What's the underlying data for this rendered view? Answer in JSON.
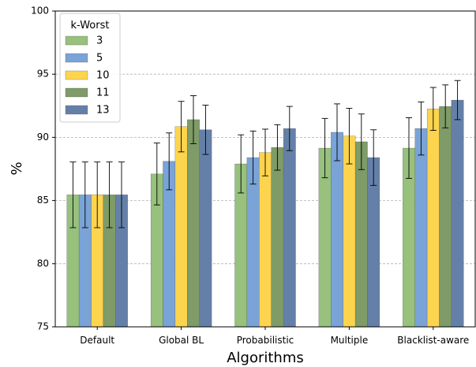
{
  "chart_data": {
    "type": "bar",
    "title": "",
    "xlabel": "Algorithms",
    "ylabel": "%",
    "ylim": [
      75,
      100
    ],
    "yticks": [
      75,
      80,
      85,
      90,
      95,
      100
    ],
    "grid": "horizontal dashed",
    "legend": {
      "title": "k-Worst",
      "position": "top-left"
    },
    "categories": [
      "Default",
      "Global BL",
      "Probabilistic",
      "Multiple",
      "Blacklist-aware"
    ],
    "series": [
      {
        "name": "3",
        "color": "#97c17d",
        "values": [
          85.45,
          87.1,
          87.9,
          89.15,
          89.15
        ],
        "errors": [
          2.6,
          2.45,
          2.3,
          2.35,
          2.4
        ]
      },
      {
        "name": "5",
        "color": "#7aa3d8",
        "values": [
          85.45,
          88.1,
          88.4,
          90.4,
          90.7
        ],
        "errors": [
          2.6,
          2.25,
          2.1,
          2.25,
          2.1
        ]
      },
      {
        "name": "10",
        "color": "#fdd44d",
        "values": [
          85.45,
          90.85,
          88.8,
          90.1,
          92.25
        ],
        "errors": [
          2.6,
          2.0,
          1.85,
          2.2,
          1.7
        ]
      },
      {
        "name": "11",
        "color": "#7e9b68",
        "values": [
          85.45,
          91.4,
          89.2,
          89.65,
          92.45
        ],
        "errors": [
          2.6,
          1.9,
          1.8,
          2.2,
          1.7
        ]
      },
      {
        "name": "13",
        "color": "#6580a8",
        "values": [
          85.45,
          90.6,
          90.7,
          88.4,
          92.95
        ],
        "errors": [
          2.6,
          1.95,
          1.75,
          2.2,
          1.55
        ]
      }
    ]
  }
}
